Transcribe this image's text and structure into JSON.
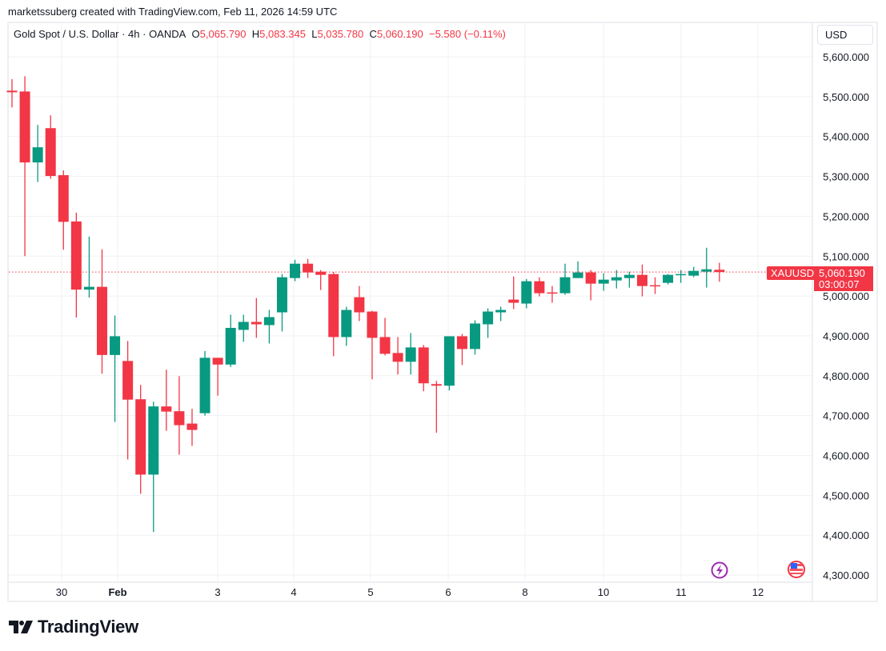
{
  "credit": "marketssuberg created with TradingView.com, Feb 11, 2026 14:59 UTC",
  "legend": {
    "symbol": "Gold Spot / U.S. Dollar · 4h · OANDA",
    "o_label": "O",
    "o": "5,065.790",
    "h_label": "H",
    "h": "5,083.345",
    "l_label": "L",
    "l": "5,035.780",
    "c_label": "C",
    "c": "5,060.190",
    "change": "−5.580 (−0.11%)"
  },
  "currency_button": "USD",
  "last_price": {
    "ticker": "XAUUSD",
    "price": "5,060.190",
    "countdown": "03:00:07"
  },
  "logo_text": "TradingView",
  "icons": [
    "lightning-event-icon",
    "us-flag-economic-event-icon"
  ],
  "colors": {
    "up": "#089981",
    "down": "#f23645",
    "grid": "#f0f1f4",
    "event": "#9c27b0"
  },
  "chart_data": {
    "type": "candlestick",
    "title": "Gold Spot / U.S. Dollar · 4h · OANDA",
    "ylim": [
      4300,
      5600
    ],
    "y_ticks": [
      "5,600.000",
      "5,500.000",
      "5,400.000",
      "5,300.000",
      "5,200.000",
      "5,100.000",
      "5,000.000",
      "4,900.000",
      "4,800.000",
      "4,700.000",
      "4,600.000",
      "4,500.000",
      "4,400.000",
      "4,300.000"
    ],
    "x_ticks": [
      {
        "label": "30",
        "bold": false
      },
      {
        "label": "Feb",
        "bold": true
      },
      {
        "label": "3",
        "bold": false
      },
      {
        "label": "4",
        "bold": false
      },
      {
        "label": "5",
        "bold": false
      },
      {
        "label": "6",
        "bold": false
      },
      {
        "label": "8",
        "bold": false
      },
      {
        "label": "10",
        "bold": false
      },
      {
        "label": "11",
        "bold": false
      },
      {
        "label": "12",
        "bold": false
      }
    ],
    "grid": true,
    "candles": [
      [
        5515,
        5544,
        5473,
        5511
      ],
      [
        5513,
        5551,
        5100,
        5335
      ],
      [
        5335,
        5429,
        5286,
        5373
      ],
      [
        5421,
        5453,
        5294,
        5301
      ],
      [
        5303,
        5315,
        5116,
        5186
      ],
      [
        5187,
        5209,
        4946,
        5016
      ],
      [
        5016,
        5149,
        4996,
        5023
      ],
      [
        5023,
        5117,
        4805,
        4852
      ],
      [
        4852,
        4951,
        4684,
        4899
      ],
      [
        4837,
        4887,
        4590,
        4740
      ],
      [
        4741,
        4777,
        4504,
        4552
      ],
      [
        4552,
        4735,
        4408,
        4723
      ],
      [
        4723,
        4815,
        4662,
        4710
      ],
      [
        4711,
        4799,
        4602,
        4676
      ],
      [
        4680,
        4717,
        4624,
        4664
      ],
      [
        4706,
        4862,
        4700,
        4845
      ],
      [
        4845,
        4845,
        4750,
        4828
      ],
      [
        4828,
        4953,
        4822,
        4920
      ],
      [
        4915,
        4953,
        4885,
        4935
      ],
      [
        4935,
        4995,
        4895,
        4929
      ],
      [
        4927,
        4965,
        4881,
        4947
      ],
      [
        4959,
        5055,
        4911,
        5047
      ],
      [
        5045,
        5091,
        5037,
        5081
      ],
      [
        5081,
        5093,
        5045,
        5059
      ],
      [
        5061,
        5065,
        5015,
        5053
      ],
      [
        5055,
        5060,
        4849,
        4897
      ],
      [
        4897,
        4973,
        4875,
        4965
      ],
      [
        4997,
        5025,
        4937,
        4959
      ],
      [
        4961,
        4963,
        4791,
        4895
      ],
      [
        4897,
        4945,
        4851,
        4855
      ],
      [
        4857,
        4897,
        4803,
        4835
      ],
      [
        4835,
        4907,
        4803,
        4871
      ],
      [
        4871,
        4877,
        4761,
        4781
      ],
      [
        4779,
        4787,
        4657,
        4775
      ],
      [
        4775,
        4899,
        4763,
        4899
      ],
      [
        4899,
        4905,
        4827,
        4867
      ],
      [
        4867,
        4939,
        4853,
        4931
      ],
      [
        4929,
        4969,
        4895,
        4961
      ],
      [
        4959,
        4973,
        4937,
        4965
      ],
      [
        4991,
        5049,
        4967,
        4983
      ],
      [
        4981,
        5043,
        4969,
        5037
      ],
      [
        5037,
        5047,
        4999,
        5007
      ],
      [
        5009,
        5025,
        4983,
        5007
      ],
      [
        5007,
        5081,
        5003,
        5047
      ],
      [
        5045,
        5087,
        5045,
        5059
      ],
      [
        5059,
        5065,
        4989,
        5031
      ],
      [
        5031,
        5057,
        5013,
        5041
      ],
      [
        5039,
        5065,
        5019,
        5047
      ],
      [
        5045,
        5061,
        5021,
        5053
      ],
      [
        5053,
        5079,
        4999,
        5025
      ],
      [
        5027,
        5047,
        5005,
        5025
      ],
      [
        5033,
        5055,
        5029,
        5053
      ],
      [
        5053,
        5065,
        5033,
        5055
      ],
      [
        5051,
        5073,
        5047,
        5063
      ],
      [
        5061,
        5121,
        5021,
        5067
      ],
      [
        5065.79,
        5083.345,
        5035.78,
        5060.19
      ]
    ],
    "last_price": 5060.19
  }
}
